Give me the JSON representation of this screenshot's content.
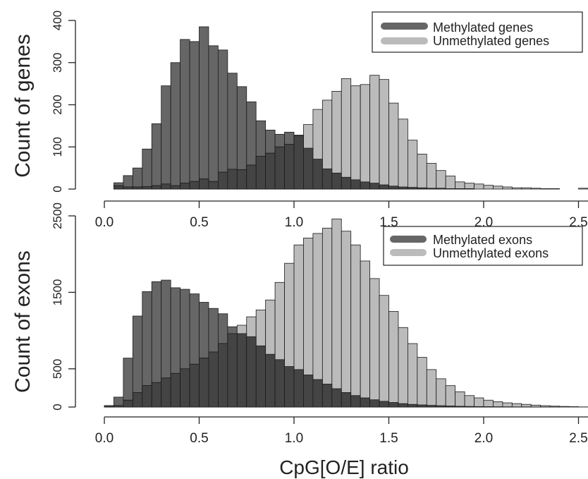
{
  "chart_data": [
    {
      "type": "bar",
      "subtype": "overlapping-histogram",
      "title": "",
      "xlabel": "",
      "ylabel": "Count of genes",
      "xlim": [
        0,
        2.55
      ],
      "ylim": [
        0,
        400
      ],
      "x_ticks": [
        "0.0",
        "0.5",
        "1.0",
        "1.5",
        "2.0",
        "2.5"
      ],
      "y_ticks": [
        "0",
        "100",
        "200",
        "300",
        "400"
      ],
      "bin_width": 0.05,
      "bin_start": 0.05,
      "legend": "top-right",
      "colors": {
        "methylated": "#666666",
        "unmethylated": "#bbbbbb",
        "overlap": "#444444"
      },
      "series": [
        {
          "name": "Methylated genes",
          "values": [
            15,
            32,
            50,
            95,
            155,
            245,
            300,
            355,
            350,
            385,
            340,
            330,
            275,
            243,
            207,
            162,
            140,
            130,
            135,
            127,
            97,
            71,
            48,
            38,
            28,
            22,
            17,
            14,
            10,
            7,
            5,
            4,
            3,
            2,
            2,
            1,
            1,
            1,
            0,
            0,
            0,
            0,
            0,
            0,
            0,
            0,
            0,
            0,
            0,
            0
          ]
        },
        {
          "name": "Unmethylated genes",
          "values": [
            8,
            5,
            5,
            6,
            8,
            12,
            8,
            14,
            18,
            24,
            18,
            40,
            47,
            46,
            57,
            78,
            85,
            100,
            106,
            128,
            153,
            189,
            211,
            232,
            262,
            245,
            248,
            270,
            260,
            204,
            166,
            116,
            83,
            61,
            44,
            31,
            17,
            14,
            12,
            9,
            7,
            5,
            3,
            3,
            2,
            1,
            1,
            0,
            0,
            2
          ]
        }
      ]
    },
    {
      "type": "bar",
      "subtype": "overlapping-histogram",
      "title": "",
      "xlabel": "CpG[O/E] ratio",
      "ylabel": "Count of exons",
      "xlim": [
        0,
        2.55
      ],
      "ylim": [
        0,
        2500
      ],
      "x_ticks": [
        "0.0",
        "0.5",
        "1.0",
        "1.5",
        "2.0",
        "2.5"
      ],
      "y_ticks": [
        "0",
        "500",
        "1500",
        "2500"
      ],
      "bin_width": 0.05,
      "bin_start": 0.0,
      "legend": "top-right",
      "colors": {
        "methylated": "#666666",
        "unmethylated": "#bbbbbb",
        "overlap": "#444444"
      },
      "series": [
        {
          "name": "Methylated exons",
          "values": [
            20,
            130,
            640,
            1190,
            1510,
            1640,
            1660,
            1560,
            1540,
            1480,
            1370,
            1290,
            1220,
            1050,
            960,
            920,
            800,
            690,
            620,
            530,
            490,
            420,
            360,
            300,
            240,
            190,
            150,
            120,
            95,
            75,
            60,
            45,
            35,
            28,
            22,
            18,
            14,
            10,
            8,
            6,
            5,
            4,
            3,
            2,
            2,
            1,
            1,
            1,
            0,
            0,
            0
          ]
        },
        {
          "name": "Unmethylated exons",
          "values": [
            5,
            20,
            90,
            190,
            280,
            320,
            380,
            440,
            500,
            560,
            640,
            720,
            830,
            960,
            1070,
            1180,
            1270,
            1400,
            1630,
            1880,
            2120,
            2210,
            2270,
            2340,
            2460,
            2300,
            2120,
            1910,
            1680,
            1460,
            1250,
            1040,
            830,
            650,
            490,
            370,
            280,
            200,
            150,
            120,
            90,
            70,
            55,
            45,
            35,
            25,
            18,
            12,
            8,
            5,
            2
          ]
        }
      ]
    }
  ]
}
